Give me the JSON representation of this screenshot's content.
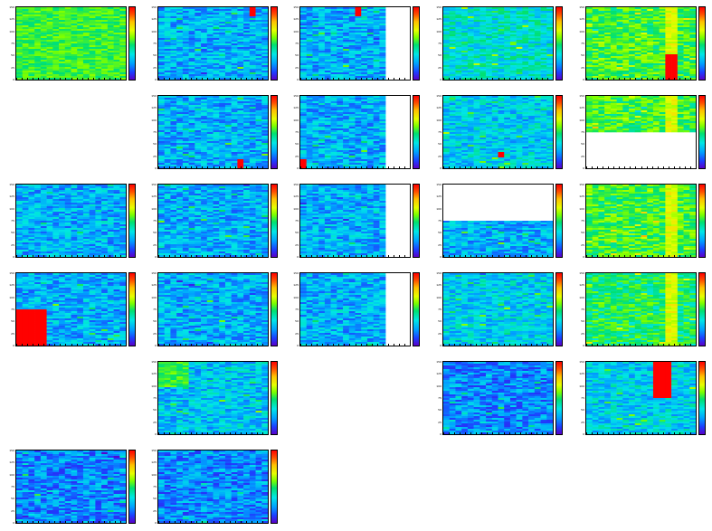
{
  "chart_data": {
    "type": "heatmap",
    "layout": "grid of 2D histograms, 5 columns x 6 rows, some cells empty",
    "y_tick_labels": [
      "0",
      "25",
      "50",
      "75",
      "100",
      "125",
      "150"
    ],
    "palette": [
      "#5a00c8",
      "#1e3cff",
      "#00a0ff",
      "#00e6e6",
      "#00e070",
      "#7aff00",
      "#e6ff00",
      "#ffc000",
      "#ff5000",
      "#ff0000"
    ],
    "panels": [
      {
        "row": 0,
        "col": 0,
        "level": 0.55,
        "variant": "green-uniform"
      },
      {
        "row": 0,
        "col": 1,
        "level": 0.25,
        "hot": [
          {
            "x0": 0.82,
            "x1": 0.89,
            "y0": 0.0,
            "y1": 0.13
          }
        ]
      },
      {
        "row": 0,
        "col": 2,
        "level": 0.25,
        "blank_x0": 0.76,
        "hot": [
          {
            "x0": 0.48,
            "x1": 0.55,
            "y0": 0.0,
            "y1": 0.13
          }
        ]
      },
      {
        "row": 0,
        "col": 3,
        "level": 0.35
      },
      {
        "row": 0,
        "col": 4,
        "level": 0.5,
        "stripe_x": [
          0.75,
          0.83
        ],
        "hot": [
          {
            "x0": 0.75,
            "x1": 0.83,
            "y0": 0.65,
            "y1": 1.0
          }
        ]
      },
      {
        "row": 1,
        "col": 1,
        "level": 0.25,
        "hot": [
          {
            "x0": 0.7,
            "x1": 0.76,
            "y0": 0.88,
            "y1": 1.0
          }
        ]
      },
      {
        "row": 1,
        "col": 2,
        "level": 0.25,
        "blank_x0": 0.76,
        "hot": [
          {
            "x0": 0.0,
            "x1": 0.06,
            "y0": 0.88,
            "y1": 1.0
          }
        ]
      },
      {
        "row": 1,
        "col": 3,
        "level": 0.3,
        "hot": [
          {
            "x0": 0.5,
            "x1": 0.57,
            "y0": 0.77,
            "y1": 0.84
          }
        ]
      },
      {
        "row": 1,
        "col": 4,
        "level": 0.5,
        "blank_y1": 0.5,
        "stripe_x": [
          0.75,
          0.83
        ]
      },
      {
        "row": 2,
        "col": 0,
        "level": 0.25
      },
      {
        "row": 2,
        "col": 1,
        "level": 0.25
      },
      {
        "row": 2,
        "col": 2,
        "level": 0.25,
        "blank_x0": 0.76
      },
      {
        "row": 2,
        "col": 3,
        "level": 0.25,
        "blank_y0_top": 0.5
      },
      {
        "row": 2,
        "col": 4,
        "level": 0.5,
        "stripe_x": [
          0.75,
          0.83
        ]
      },
      {
        "row": 3,
        "col": 0,
        "level": 0.25,
        "hot": [
          {
            "x0": 0.0,
            "x1": 0.25,
            "y0": 0.5,
            "y1": 1.0
          }
        ]
      },
      {
        "row": 3,
        "col": 1,
        "level": 0.25
      },
      {
        "row": 3,
        "col": 2,
        "level": 0.25,
        "blank_x0": 0.76
      },
      {
        "row": 3,
        "col": 3,
        "level": 0.3
      },
      {
        "row": 3,
        "col": 4,
        "level": 0.45,
        "stripe_x": [
          0.72,
          0.83
        ]
      },
      {
        "row": 4,
        "col": 1,
        "level": 0.28,
        "variant": "green-corner"
      },
      {
        "row": 4,
        "col": 3,
        "level": 0.2
      },
      {
        "row": 4,
        "col": 4,
        "level": 0.3,
        "hot": [
          {
            "x0": 0.63,
            "x1": 0.75,
            "y0": 0.0,
            "y1": 0.5
          }
        ]
      },
      {
        "row": 5,
        "col": 0,
        "level": 0.2
      },
      {
        "row": 5,
        "col": 1,
        "level": 0.2
      }
    ]
  }
}
